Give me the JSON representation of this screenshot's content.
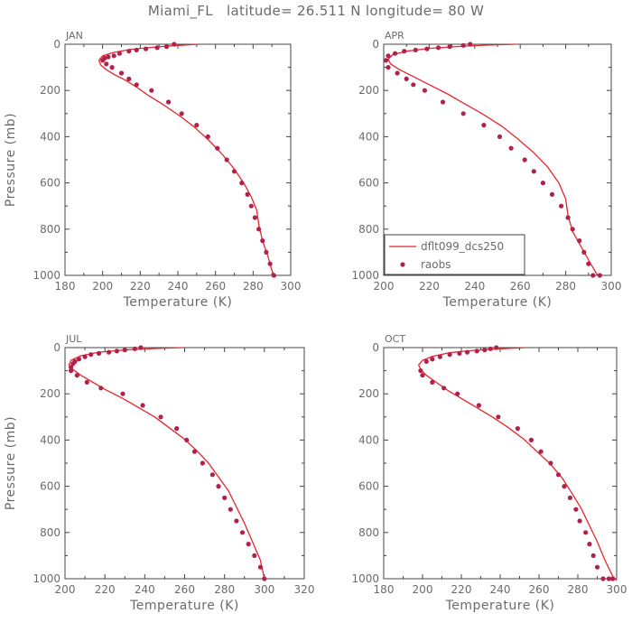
{
  "title": "Miami_FL   latitude= 26.511 N longitude= 80 W",
  "colors": {
    "model": "#e8262a",
    "obs": "#b0224e",
    "axis": "#444444",
    "text": "#6b6b6b"
  },
  "legend": {
    "model": "dflt099_dcs250",
    "obs": "raobs"
  },
  "chart_data": [
    {
      "type": "line",
      "panel": "JAN",
      "xlabel": "Temperature (K)",
      "ylabel": "Pressure (mb)",
      "xlim": [
        180,
        300
      ],
      "xticks": [
        180,
        200,
        220,
        240,
        260,
        280,
        300
      ],
      "ylim": [
        0,
        1000
      ],
      "yticks": [
        0,
        200,
        400,
        600,
        800,
        1000
      ],
      "y_inverted": true,
      "legend_shown": false,
      "series": [
        {
          "name": "dflt099_dcs250",
          "kind": "line",
          "x": [
            251,
            240,
            228,
            215,
            206,
            200,
            198,
            199,
            202,
            206,
            212,
            218,
            224,
            232,
            241,
            249,
            257,
            264,
            270,
            275,
            279,
            282,
            283,
            285,
            288,
            290,
            292
          ],
          "y": [
            0,
            5,
            12,
            22,
            35,
            50,
            70,
            90,
            110,
            130,
            155,
            185,
            220,
            260,
            310,
            360,
            420,
            480,
            540,
            600,
            660,
            720,
            780,
            850,
            920,
            980,
            1010
          ]
        },
        {
          "name": "raobs",
          "kind": "scatter",
          "x": [
            238,
            234,
            229,
            223,
            218,
            214,
            209,
            206,
            203,
            201,
            200,
            202,
            205,
            210,
            214,
            218,
            226,
            235,
            242,
            250,
            256,
            261,
            266,
            270,
            274,
            277,
            279,
            281,
            283,
            285,
            287,
            289,
            291
          ],
          "y": [
            0,
            10,
            15,
            20,
            25,
            30,
            40,
            50,
            55,
            60,
            70,
            85,
            100,
            125,
            150,
            175,
            200,
            250,
            300,
            350,
            400,
            450,
            500,
            550,
            600,
            650,
            700,
            750,
            800,
            850,
            900,
            950,
            1000
          ]
        }
      ]
    },
    {
      "type": "line",
      "panel": "APR",
      "xlabel": "Temperature (K)",
      "ylabel": "",
      "xlim": [
        200,
        300
      ],
      "xticks": [
        200,
        220,
        240,
        260,
        280,
        300
      ],
      "ylim": [
        0,
        1000
      ],
      "yticks": [
        0,
        200,
        400,
        600,
        800,
        1000
      ],
      "y_inverted": true,
      "legend_shown": true,
      "legend_position": "bottom-left",
      "series": [
        {
          "name": "dflt099_dcs250",
          "kind": "line",
          "x": [
            258,
            245,
            232,
            220,
            210,
            204,
            202,
            203,
            207,
            213,
            220,
            228,
            236,
            244,
            252,
            259,
            266,
            272,
            277,
            280,
            281,
            283,
            287,
            291,
            294
          ],
          "y": [
            0,
            4,
            10,
            18,
            30,
            45,
            65,
            85,
            110,
            140,
            175,
            215,
            260,
            305,
            355,
            410,
            470,
            530,
            600,
            670,
            740,
            810,
            880,
            950,
            1000
          ]
        },
        {
          "name": "raobs",
          "kind": "scatter",
          "x": [
            238,
            235,
            229,
            224,
            219,
            214,
            209,
            205,
            202,
            201,
            202,
            206,
            210,
            213,
            218,
            226,
            235,
            244,
            251,
            256,
            262,
            266,
            270,
            274,
            278,
            281,
            283,
            286,
            288,
            290,
            292,
            295
          ],
          "y": [
            0,
            5,
            10,
            15,
            20,
            25,
            30,
            40,
            50,
            70,
            100,
            125,
            150,
            175,
            200,
            250,
            300,
            350,
            400,
            450,
            500,
            550,
            600,
            650,
            700,
            750,
            800,
            850,
            900,
            950,
            1000,
            1000
          ]
        }
      ]
    },
    {
      "type": "line",
      "panel": "JUL",
      "xlabel": "Temperature (K)",
      "ylabel": "Pressure (mb)",
      "xlim": [
        200,
        320
      ],
      "xticks": [
        200,
        220,
        240,
        260,
        280,
        300,
        320
      ],
      "ylim": [
        0,
        1000
      ],
      "yticks": [
        0,
        200,
        400,
        600,
        800,
        1000
      ],
      "y_inverted": true,
      "legend_shown": false,
      "series": [
        {
          "name": "dflt099_dcs250",
          "kind": "line",
          "x": [
            259,
            245,
            230,
            217,
            208,
            203,
            202,
            204,
            208,
            214,
            221,
            229,
            237,
            245,
            252,
            259,
            266,
            272,
            277,
            282,
            286,
            290,
            294,
            298,
            300
          ],
          "y": [
            0,
            4,
            10,
            20,
            35,
            55,
            75,
            95,
            120,
            150,
            185,
            220,
            260,
            300,
            345,
            390,
            445,
            500,
            560,
            620,
            690,
            760,
            840,
            920,
            1000
          ]
        },
        {
          "name": "raobs",
          "kind": "scatter",
          "x": [
            238,
            235,
            230,
            226,
            222,
            217,
            213,
            210,
            207,
            205,
            204,
            203,
            203,
            206,
            211,
            218,
            229,
            239,
            248,
            256,
            261,
            265,
            269,
            274,
            277,
            280,
            283,
            286,
            289,
            292,
            295,
            298,
            300
          ],
          "y": [
            0,
            5,
            10,
            15,
            20,
            25,
            30,
            40,
            50,
            60,
            70,
            85,
            100,
            120,
            150,
            175,
            200,
            250,
            300,
            350,
            400,
            450,
            500,
            550,
            600,
            650,
            700,
            750,
            800,
            850,
            900,
            950,
            1000
          ]
        }
      ]
    },
    {
      "type": "line",
      "panel": "OCT",
      "xlabel": "Temperature (K)",
      "ylabel": "",
      "xlim": [
        180,
        300
      ],
      "xticks": [
        180,
        200,
        220,
        240,
        260,
        280,
        300
      ],
      "ylim": [
        0,
        1000
      ],
      "yticks": [
        0,
        200,
        400,
        600,
        800,
        1000
      ],
      "y_inverted": true,
      "legend_shown": false,
      "series": [
        {
          "name": "dflt099_dcs250",
          "kind": "line",
          "x": [
            253,
            240,
            226,
            214,
            205,
            200,
            198,
            199,
            202,
            207,
            213,
            220,
            228,
            236,
            244,
            252,
            259,
            266,
            272,
            277,
            282,
            286,
            290,
            294,
            298,
            300
          ],
          "y": [
            0,
            5,
            12,
            22,
            38,
            55,
            75,
            95,
            120,
            150,
            185,
            220,
            260,
            300,
            345,
            395,
            450,
            505,
            565,
            630,
            700,
            770,
            840,
            920,
            990,
            1010
          ]
        },
        {
          "name": "raobs",
          "kind": "scatter",
          "x": [
            238,
            235,
            232,
            228,
            223,
            219,
            214,
            209,
            205,
            202,
            199,
            200,
            205,
            211,
            218,
            229,
            239,
            249,
            256,
            261,
            266,
            270,
            273,
            276,
            279,
            281,
            284,
            286,
            288,
            290,
            293,
            296,
            298
          ],
          "y": [
            0,
            5,
            10,
            15,
            20,
            25,
            30,
            40,
            50,
            60,
            100,
            120,
            150,
            175,
            200,
            250,
            300,
            350,
            400,
            450,
            500,
            550,
            600,
            650,
            700,
            750,
            800,
            850,
            900,
            950,
            1000,
            1000,
            1000
          ]
        }
      ]
    }
  ]
}
